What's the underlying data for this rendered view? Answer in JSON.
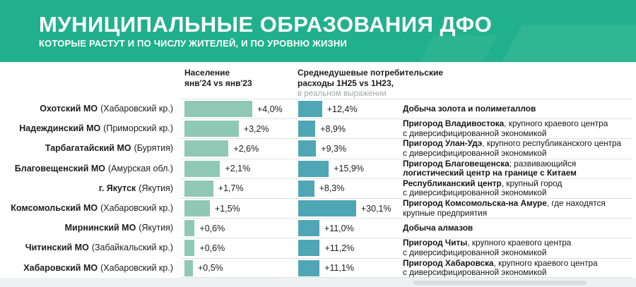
{
  "header": {
    "title": "МУНИЦИПАЛЬНЫЕ ОБРАЗОВАНИЯ ДФО",
    "subtitle": "КОТОРЫЕ РАСТУТ И ПО ЧИСЛУ ЖИТЕЛЕЙ, И ПО УРОВНЮ ЖИЗНИ"
  },
  "columns": {
    "population": {
      "line1": "Население",
      "line2": "янв'24 vs янв'23"
    },
    "spending": {
      "line1": "Среднедушевые потребительские",
      "line2": "расходы 1Н25 vs 1Н23,",
      "note": "в реальном выражении"
    }
  },
  "colors": {
    "header_bg": "#21b08d",
    "population_bar": "#8fc8b4",
    "spending_bar": "#4fa6b4",
    "divider": "#dfe3e2",
    "note_gray": "#a3a9a9",
    "footer_bg": "#eef1f1"
  },
  "rows": [
    {
      "name": "Охотский МО",
      "region": "(Хабаровский кр.)",
      "pop_value": 4.0,
      "pop_label": "+4,0%",
      "spend_value": 12.4,
      "spend_label": "+12,4%",
      "desc": [
        [
          {
            "t": "Добыча золота и полиметаллов",
            "b": true
          }
        ]
      ]
    },
    {
      "name": "Надеждинский МО",
      "region": "(Приморский кр.)",
      "pop_value": 3.2,
      "pop_label": "+3,2%",
      "spend_value": 8.9,
      "spend_label": "+8,9%",
      "desc": [
        [
          {
            "t": "Пригород Владивостока",
            "b": true
          },
          {
            "t": ", крупного краевого центра",
            "b": false
          }
        ],
        [
          {
            "t": "с диверсифицированной экономикой",
            "b": false
          }
        ]
      ]
    },
    {
      "name": "Тарбагатайский МО",
      "region": "(Бурятия)",
      "pop_value": 2.6,
      "pop_label": "+2,6%",
      "spend_value": 9.3,
      "spend_label": "+9,3%",
      "desc": [
        [
          {
            "t": "Пригород Улан-Удэ",
            "b": true
          },
          {
            "t": ", крупного республиканского центра",
            "b": false
          }
        ],
        [
          {
            "t": "с диверсифицированной экономикой",
            "b": false
          }
        ]
      ]
    },
    {
      "name": "Благовещенский МО",
      "region": "(Амурская обл.)",
      "pop_value": 2.1,
      "pop_label": "+2,1%",
      "spend_value": 15.9,
      "spend_label": "+15,9%",
      "desc": [
        [
          {
            "t": "Пригород Благовещенска",
            "b": true
          },
          {
            "t": "; развивающийся",
            "b": false
          }
        ],
        [
          {
            "t": "логистический центр на границе с Китаем",
            "b": true
          }
        ]
      ]
    },
    {
      "name": "г. Якутск",
      "region": "(Якутия)",
      "pop_value": 1.7,
      "pop_label": "+1,7%",
      "spend_value": 8.3,
      "spend_label": "+8,3%",
      "desc": [
        [
          {
            "t": "Республиканский центр",
            "b": true
          },
          {
            "t": ", крупный город",
            "b": false
          }
        ],
        [
          {
            "t": "с диверсифицированной экономикой",
            "b": false
          }
        ]
      ]
    },
    {
      "name": "Комсомольский МО",
      "region": "(Хабаровский кр.)",
      "pop_value": 1.5,
      "pop_label": "+1,5%",
      "spend_value": 30.1,
      "spend_label": "+30,1%",
      "desc": [
        [
          {
            "t": "Пригород Комсомольска-на Амуре",
            "b": true
          },
          {
            "t": ", где находятся",
            "b": false
          }
        ],
        [
          {
            "t": "крупные предприятия",
            "b": false
          }
        ]
      ]
    },
    {
      "name": "Мирнинский МО",
      "region": "(Якутия)",
      "pop_value": 0.6,
      "pop_label": "+0,6%",
      "spend_value": 11.0,
      "spend_label": "+11,0%",
      "desc": [
        [
          {
            "t": "Добыча алмазов",
            "b": true
          }
        ]
      ]
    },
    {
      "name": "Читинский МО",
      "region": "(Забайкальский кр.)",
      "pop_value": 0.6,
      "pop_label": "+0,6%",
      "spend_value": 11.2,
      "spend_label": "+11,2%",
      "desc": [
        [
          {
            "t": "Пригород Читы",
            "b": true
          },
          {
            "t": ", крупного краевого центра",
            "b": false
          }
        ],
        [
          {
            "t": "с диверсифицированной экономикой",
            "b": false
          }
        ]
      ]
    },
    {
      "name": "Хабаровский МО",
      "region": "(Хабаровский кр.)",
      "pop_value": 0.5,
      "pop_label": "+0,5%",
      "spend_value": 11.1,
      "spend_label": "+11,1%",
      "desc": [
        [
          {
            "t": "Пригород Хабаровска",
            "b": true
          },
          {
            "t": ", крупного краевого центра",
            "b": false
          }
        ],
        [
          {
            "t": "с диверсифицированной экономикой",
            "b": false
          }
        ]
      ]
    }
  ],
  "chart_data": {
    "type": "bar",
    "orientation": "horizontal",
    "title": "МУНИЦИПАЛЬНЫЕ ОБРАЗОВАНИЯ ДФО",
    "subtitle": "КОТОРЫЕ РАСТУТ И ПО ЧИСЛУ ЖИТЕЛЕЙ, И ПО УРОВНЮ ЖИЗНИ",
    "categories": [
      "Охотский МО (Хабаровский кр.)",
      "Надеждинский МО (Приморский кр.)",
      "Тарбагатайский МО (Бурятия)",
      "Благовещенский МО (Амурская обл.)",
      "г. Якутск (Якутия)",
      "Комсомольский МО (Хабаровский кр.)",
      "Мирнинский МО (Якутия)",
      "Читинский МО (Забайкальский кр.)",
      "Хабаровский МО (Хабаровский кр.)"
    ],
    "series": [
      {
        "name": "Население янв'24 vs янв'23",
        "unit": "%",
        "color": "#8fc8b4",
        "values": [
          4.0,
          3.2,
          2.6,
          2.1,
          1.7,
          1.5,
          0.6,
          0.6,
          0.5
        ],
        "labels": [
          "+4,0%",
          "+3,2%",
          "+2,6%",
          "+2,1%",
          "+1,7%",
          "+1,5%",
          "+0,6%",
          "+0,6%",
          "+0,5%"
        ]
      },
      {
        "name": "Среднедушевые потребительские расходы 1Н25 vs 1Н23, в реальном выражении",
        "unit": "%",
        "color": "#4fa6b4",
        "values": [
          12.4,
          8.9,
          9.3,
          15.9,
          8.3,
          30.1,
          11.0,
          11.2,
          11.1
        ],
        "labels": [
          "+12,4%",
          "+8,9%",
          "+9,3%",
          "+15,9%",
          "+8,3%",
          "+30,1%",
          "+11,0%",
          "+11,2%",
          "+11,1%"
        ]
      }
    ],
    "annotations": [
      "Добыча золота и полиметаллов",
      "Пригород Владивостока, крупного краевого центра с диверсифицированной экономикой",
      "Пригород Улан-Удэ, крупного республиканского центра с диверсифицированной экономикой",
      "Пригород Благовещенска; развивающийся логистический центр на границе с Китаем",
      "Республиканский центр, крупный город с диверсифицированной экономикой",
      "Пригород Комсомольска-на Амуре, где находятся крупные предприятия",
      "Добыча алмазов",
      "Пригород Читы, крупного краевого центра с диверсифицированной экономикой",
      "Пригород Хабаровска, крупного краевого центра с диверсифицированной экономикой"
    ],
    "grid": false,
    "legend_position": "column-headers",
    "value_labels": "outside-end"
  }
}
